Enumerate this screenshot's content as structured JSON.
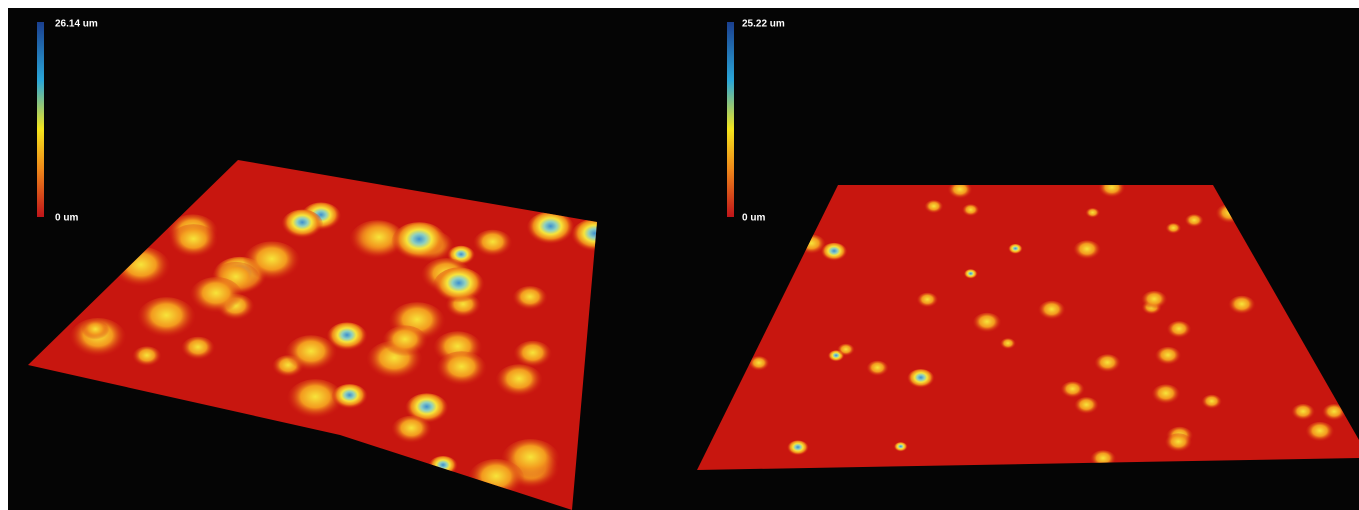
{
  "panels": [
    {
      "scale_max": "26.14 um",
      "scale_min": "0 um"
    },
    {
      "scale_max": "25.22 um",
      "scale_min": "0 um"
    }
  ]
}
